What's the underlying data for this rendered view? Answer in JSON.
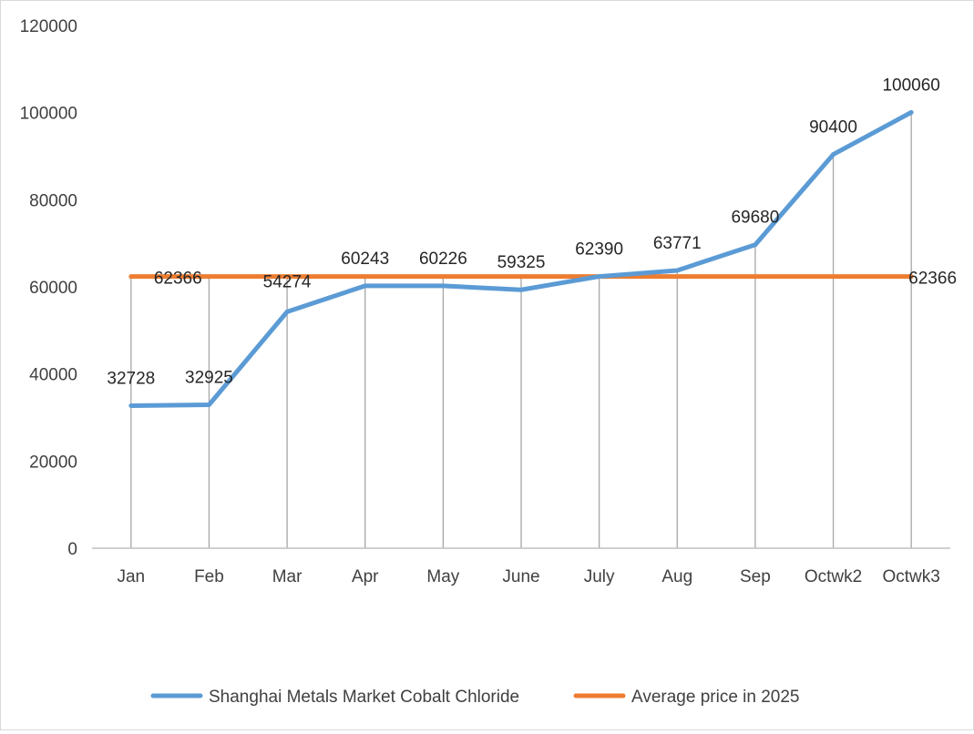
{
  "chart_data": {
    "type": "line",
    "categories": [
      "Jan",
      "Feb",
      "Mar",
      "Apr",
      "May",
      "June",
      "July",
      "Aug",
      "Sep",
      "Octwk2",
      "Octwk3"
    ],
    "series": [
      {
        "name": "Shanghai Metals Market Cobalt Chloride",
        "values": [
          32728,
          32925,
          54274,
          60243,
          60226,
          59325,
          62390,
          63771,
          69680,
          90400,
          100060
        ],
        "labels": [
          "32728",
          "32925",
          "54274",
          "60243",
          "60226",
          "59325",
          "62390",
          "63771",
          "69680",
          "90400",
          "100060"
        ],
        "color": "#5B9BD5"
      },
      {
        "name": "Average price in 2025",
        "values": [
          62366,
          62366,
          62366,
          62366,
          62366,
          62366,
          62366,
          62366,
          62366,
          62366,
          62366
        ],
        "labels": [
          "62366",
          "",
          "",
          "",
          "",
          "",
          "",
          "",
          "",
          "",
          "62366"
        ],
        "color": "#ED7D31"
      }
    ],
    "title": "",
    "xlabel": "",
    "ylabel": "",
    "ylim": [
      0,
      120000
    ],
    "yticks": [
      "0",
      "20000",
      "40000",
      "60000",
      "80000",
      "100000",
      "120000"
    ],
    "grid": false,
    "drop_lines": true,
    "legend_position": "bottom"
  }
}
